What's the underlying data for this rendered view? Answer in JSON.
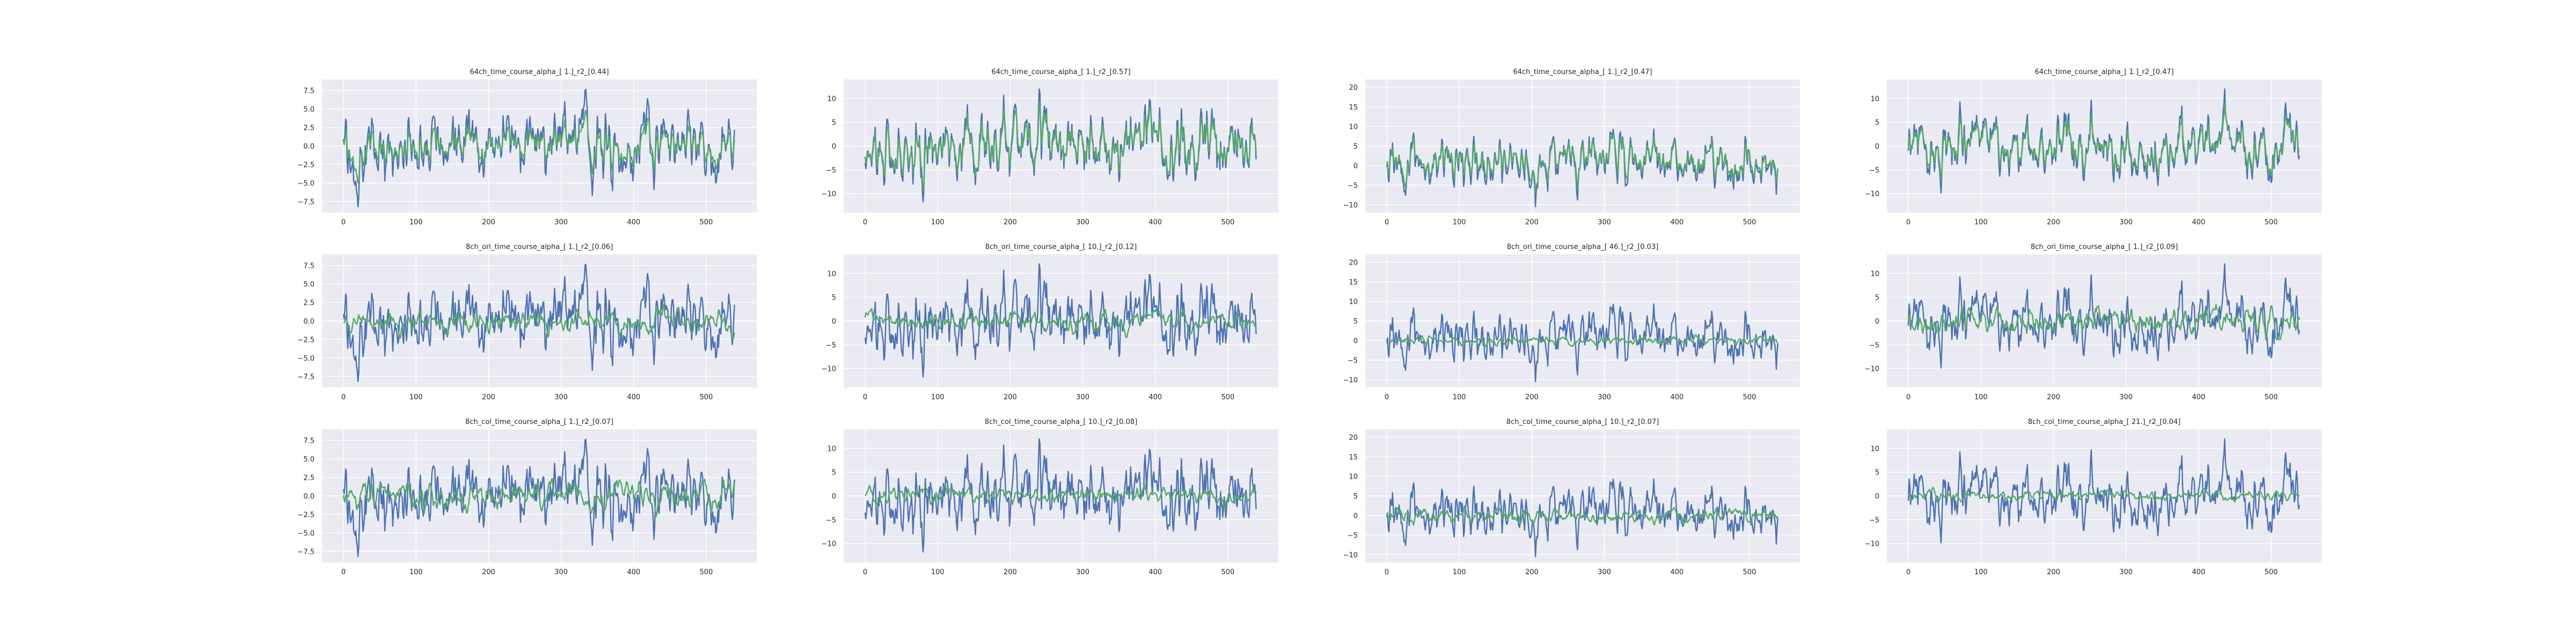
{
  "colors": {
    "axes_bg": "#eaeaf2",
    "grid": "#ffffff",
    "series_blue": "#4c72b0",
    "series_green": "#55a868",
    "text": "#262626"
  },
  "chart_data": [
    {
      "type": "line",
      "title": "64ch_time_course_alpha_[ 1.]_r2_[0.44]",
      "xlim": [
        0,
        540
      ],
      "ylim": [
        -9,
        9
      ],
      "xticks": [
        0,
        100,
        200,
        300,
        400,
        500
      ],
      "yticks": [
        -7.5,
        -5.0,
        -2.5,
        0.0,
        2.5,
        5.0,
        7.5
      ],
      "ytick_labels": [
        "−7.5",
        "−5.0",
        "−2.5",
        "0.0",
        "2.5",
        "5.0",
        "7.5"
      ],
      "series": [
        {
          "color": "blue",
          "amplitude": 8.2,
          "seed": 1,
          "smooth": 0.35
        },
        {
          "color": "green",
          "amplitude": 5.0,
          "seed": 1,
          "smooth": 0.55
        }
      ]
    },
    {
      "type": "line",
      "title": "64ch_time_course_alpha_[ 1.]_r2_[0.57]",
      "xlim": [
        0,
        540
      ],
      "ylim": [
        -14,
        14
      ],
      "xticks": [
        0,
        100,
        200,
        300,
        400,
        500
      ],
      "yticks": [
        -10,
        -5,
        0,
        5,
        10
      ],
      "ytick_labels": [
        "−10",
        "−5",
        "0",
        "5",
        "10"
      ],
      "series": [
        {
          "color": "blue",
          "amplitude": 12,
          "seed": 2,
          "smooth": 0.35
        },
        {
          "color": "green",
          "amplitude": 9.5,
          "seed": 2,
          "smooth": 0.55
        }
      ]
    },
    {
      "type": "line",
      "title": "64ch_time_course_alpha_[ 1.]_r2_[0.47]",
      "xlim": [
        0,
        540
      ],
      "ylim": [
        -12,
        22
      ],
      "xticks": [
        0,
        100,
        200,
        300,
        400,
        500
      ],
      "yticks": [
        -10,
        -5,
        0,
        5,
        10,
        15,
        20
      ],
      "ytick_labels": [
        "−10",
        "−5",
        "0",
        "5",
        "10",
        "15",
        "20"
      ],
      "series": [
        {
          "color": "blue",
          "amplitude": 11,
          "seed": 3,
          "smooth": 0.35,
          "offset": 0.5
        },
        {
          "color": "green",
          "amplitude": 8,
          "seed": 3,
          "smooth": 0.55,
          "offset": 1
        }
      ]
    },
    {
      "type": "line",
      "title": "64ch_time_course_alpha_[ 1.]_r2_[0.47]",
      "xlim": [
        0,
        540
      ],
      "ylim": [
        -14,
        14
      ],
      "xticks": [
        0,
        100,
        200,
        300,
        400,
        500
      ],
      "yticks": [
        -10,
        -5,
        0,
        5,
        10
      ],
      "ytick_labels": [
        "−10",
        "−5",
        "0",
        "5",
        "10"
      ],
      "series": [
        {
          "color": "blue",
          "amplitude": 12,
          "seed": 4,
          "smooth": 0.35
        },
        {
          "color": "green",
          "amplitude": 9,
          "seed": 4,
          "smooth": 0.55
        }
      ]
    },
    {
      "type": "line",
      "title": "8ch_ori_time_course_alpha_[ 1.]_r2_[0.06]",
      "xlim": [
        0,
        540
      ],
      "ylim": [
        -9,
        9
      ],
      "xticks": [
        0,
        100,
        200,
        300,
        400,
        500
      ],
      "yticks": [
        -7.5,
        -5.0,
        -2.5,
        0.0,
        2.5,
        5.0,
        7.5
      ],
      "ytick_labels": [
        "−7.5",
        "−5.0",
        "−2.5",
        "0.0",
        "2.5",
        "5.0",
        "7.5"
      ],
      "series": [
        {
          "color": "blue",
          "amplitude": 8.2,
          "seed": 1,
          "smooth": 0.35
        },
        {
          "color": "green",
          "amplitude": 2.5,
          "seed": 5,
          "smooth": 0.5
        }
      ]
    },
    {
      "type": "line",
      "title": "8ch_ori_time_course_alpha_[ 10.]_r2_[0.12]",
      "xlim": [
        0,
        540
      ],
      "ylim": [
        -14,
        14
      ],
      "xticks": [
        0,
        100,
        200,
        300,
        400,
        500
      ],
      "yticks": [
        -10,
        -5,
        0,
        5,
        10
      ],
      "ytick_labels": [
        "−10",
        "−5",
        "0",
        "5",
        "10"
      ],
      "series": [
        {
          "color": "blue",
          "amplitude": 12,
          "seed": 2,
          "smooth": 0.35
        },
        {
          "color": "green",
          "amplitude": 3.5,
          "seed": 6,
          "smooth": 0.5
        }
      ]
    },
    {
      "type": "line",
      "title": "8ch_ori_time_course_alpha_[ 46.]_r2_[0.03]",
      "xlim": [
        0,
        540
      ],
      "ylim": [
        -12,
        22
      ],
      "xticks": [
        0,
        100,
        200,
        300,
        400,
        500
      ],
      "yticks": [
        -10,
        -5,
        0,
        5,
        10,
        15,
        20
      ],
      "ytick_labels": [
        "−10",
        "−5",
        "0",
        "5",
        "10",
        "15",
        "20"
      ],
      "series": [
        {
          "color": "blue",
          "amplitude": 11,
          "seed": 3,
          "smooth": 0.35,
          "offset": 0.5
        },
        {
          "color": "green",
          "amplitude": 1.5,
          "seed": 7,
          "smooth": 0.5
        }
      ]
    },
    {
      "type": "line",
      "title": "8ch_ori_time_course_alpha_[ 1.]_r2_[0.09]",
      "xlim": [
        0,
        540
      ],
      "ylim": [
        -14,
        14
      ],
      "xticks": [
        0,
        100,
        200,
        300,
        400,
        500
      ],
      "yticks": [
        -10,
        -5,
        0,
        5,
        10
      ],
      "ytick_labels": [
        "−10",
        "−5",
        "0",
        "5",
        "10"
      ],
      "series": [
        {
          "color": "blue",
          "amplitude": 12,
          "seed": 4,
          "smooth": 0.35
        },
        {
          "color": "green",
          "amplitude": 4,
          "seed": 8,
          "smooth": 0.5
        }
      ]
    },
    {
      "type": "line",
      "title": "8ch_col_time_course_alpha_[ 1.]_r2_[0.07]",
      "xlim": [
        0,
        540
      ],
      "ylim": [
        -9,
        9
      ],
      "xticks": [
        0,
        100,
        200,
        300,
        400,
        500
      ],
      "yticks": [
        -7.5,
        -5.0,
        -2.5,
        0.0,
        2.5,
        5.0,
        7.5
      ],
      "ytick_labels": [
        "−7.5",
        "−5.0",
        "−2.5",
        "0.0",
        "2.5",
        "5.0",
        "7.5"
      ],
      "series": [
        {
          "color": "blue",
          "amplitude": 8.2,
          "seed": 1,
          "smooth": 0.35
        },
        {
          "color": "green",
          "amplitude": 2.8,
          "seed": 9,
          "smooth": 0.5
        }
      ]
    },
    {
      "type": "line",
      "title": "8ch_col_time_course_alpha_[ 10.]_r2_[0.08]",
      "xlim": [
        0,
        540
      ],
      "ylim": [
        -14,
        14
      ],
      "xticks": [
        0,
        100,
        200,
        300,
        400,
        500
      ],
      "yticks": [
        -10,
        -5,
        0,
        5,
        10
      ],
      "ytick_labels": [
        "−10",
        "−5",
        "0",
        "5",
        "10"
      ],
      "series": [
        {
          "color": "blue",
          "amplitude": 12,
          "seed": 2,
          "smooth": 0.35
        },
        {
          "color": "green",
          "amplitude": 3.0,
          "seed": 10,
          "smooth": 0.5
        }
      ]
    },
    {
      "type": "line",
      "title": "8ch_col_time_course_alpha_[ 10.]_r2_[0.07]",
      "xlim": [
        0,
        540
      ],
      "ylim": [
        -12,
        22
      ],
      "xticks": [
        0,
        100,
        200,
        300,
        400,
        500
      ],
      "yticks": [
        -10,
        -5,
        0,
        5,
        10,
        15,
        20
      ],
      "ytick_labels": [
        "−10",
        "−5",
        "0",
        "5",
        "10",
        "15",
        "20"
      ],
      "series": [
        {
          "color": "blue",
          "amplitude": 11,
          "seed": 3,
          "smooth": 0.35,
          "offset": 0.5
        },
        {
          "color": "green",
          "amplitude": 2.5,
          "seed": 11,
          "smooth": 0.5
        }
      ]
    },
    {
      "type": "line",
      "title": "8ch_col_time_course_alpha_[ 21.]_r2_[0.04]",
      "xlim": [
        0,
        540
      ],
      "ylim": [
        -14,
        14
      ],
      "xticks": [
        0,
        100,
        200,
        300,
        400,
        500
      ],
      "yticks": [
        -10,
        -5,
        0,
        5,
        10
      ],
      "ytick_labels": [
        "−10",
        "−5",
        "0",
        "5",
        "10"
      ],
      "series": [
        {
          "color": "blue",
          "amplitude": 12,
          "seed": 4,
          "smooth": 0.35
        },
        {
          "color": "green",
          "amplitude": 1.8,
          "seed": 12,
          "smooth": 0.5
        }
      ]
    }
  ]
}
